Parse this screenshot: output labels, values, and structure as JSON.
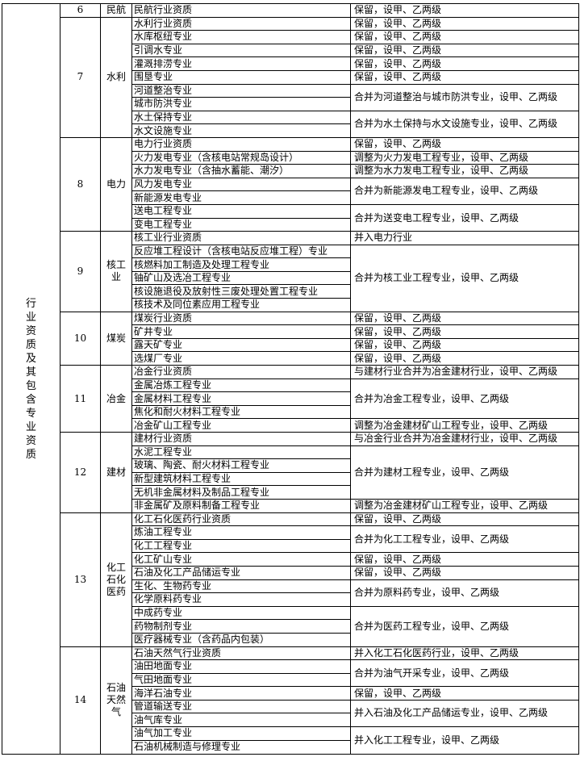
{
  "page": {
    "background": "#ffffff",
    "border_color": "#000000",
    "text_color": "#000000"
  },
  "table": {
    "row_group_header": "行业资质及其包含专业资质",
    "sections": [
      {
        "no": "6",
        "industry": "民航",
        "groups": [
          {
            "specialties": [
              "民航行业资质"
            ],
            "result": "保留，设甲、乙两级"
          }
        ]
      },
      {
        "no": "7",
        "industry": "水利",
        "groups": [
          {
            "specialties": [
              "水利行业资质"
            ],
            "result": "保留，设甲、乙两级"
          },
          {
            "specialties": [
              "水库枢纽专业"
            ],
            "result": "保留，设甲、乙两级"
          },
          {
            "specialties": [
              "引调水专业"
            ],
            "result": "保留，设甲、乙两级"
          },
          {
            "specialties": [
              "灌溉排涝专业"
            ],
            "result": "保留，设甲、乙两级"
          },
          {
            "specialties": [
              "围垦专业"
            ],
            "result": "保留，设甲、乙两级"
          },
          {
            "specialties": [
              "河道整治专业",
              "城市防洪专业"
            ],
            "result": "合并为河道整治与城市防洪专业，设甲、乙两级"
          },
          {
            "specialties": [
              "水土保持专业",
              "水文设施专业"
            ],
            "result": "合并为水土保持与水文设施专业，设甲、乙两级"
          }
        ]
      },
      {
        "no": "8",
        "industry": "电力",
        "groups": [
          {
            "specialties": [
              "电力行业资质"
            ],
            "result": "保留，设甲、乙两级"
          },
          {
            "specialties": [
              "火力发电专业（含核电站常规岛设计）"
            ],
            "result": "调整为火力发电工程专业，设甲、乙两级"
          },
          {
            "specialties": [
              "水力发电专业（含抽水蓄能、潮汐）"
            ],
            "result": "调整为水力发电工程专业，设甲、乙两级"
          },
          {
            "specialties": [
              "风力发电专业",
              "新能源发电专业"
            ],
            "result": "合并为新能源发电工程专业，设甲、乙两级"
          },
          {
            "specialties": [
              "送电工程专业",
              "变电工程专业"
            ],
            "result": "合并为送变电工程专业，设甲、乙两级"
          }
        ]
      },
      {
        "no": "9",
        "industry": "核工业",
        "groups": [
          {
            "specialties": [
              "核工业行业资质"
            ],
            "result": "并入电力行业"
          },
          {
            "specialties": [
              "反应堆工程设计（含核电站反应堆工程）专业",
              "核燃料加工制造及处理工程专业",
              "铀矿山及选冶工程专业",
              "核设施退役及放射性三废处理处置工程专业",
              "核技术及同位素应用工程专业"
            ],
            "result": "合并为核工业工程专业，设甲、乙两级"
          }
        ]
      },
      {
        "no": "10",
        "industry": "煤炭",
        "groups": [
          {
            "specialties": [
              "煤炭行业资质"
            ],
            "result": "保留，设甲、乙两级"
          },
          {
            "specialties": [
              "矿井专业"
            ],
            "result": "保留，设甲、乙两级"
          },
          {
            "specialties": [
              "露天矿专业"
            ],
            "result": "保留，设甲、乙两级"
          },
          {
            "specialties": [
              "选煤厂专业"
            ],
            "result": "保留，设甲、乙两级"
          }
        ]
      },
      {
        "no": "11",
        "industry": "冶金",
        "groups": [
          {
            "specialties": [
              "冶金行业资质"
            ],
            "result": "与建材行业合并为冶金建材行业，设甲、乙两级"
          },
          {
            "specialties": [
              "金属冶炼工程专业",
              "金属材料工程专业",
              "焦化和耐火材料工程专业"
            ],
            "result": "合并为冶金工程专业，设甲、乙两级"
          },
          {
            "specialties": [
              "冶金矿山工程专业"
            ],
            "result": "调整为冶金建材矿山工程专业，设甲、乙两级"
          }
        ]
      },
      {
        "no": "12",
        "industry": "建材",
        "groups": [
          {
            "specialties": [
              "建材行业资质"
            ],
            "result": "与冶金行业合并为冶金建材行业，设甲、乙两级"
          },
          {
            "specialties": [
              "水泥工程专业",
              "玻璃、陶瓷、耐火材料工程专业",
              "新型建筑材料工程专业",
              "无机非金属材料及制品工程专业"
            ],
            "result": "合并为建材工程专业，设甲、乙两级"
          },
          {
            "specialties": [
              "非金属矿及原料制备工程专业"
            ],
            "result": "调整为冶金建材矿山工程专业，设甲、乙两级"
          }
        ]
      },
      {
        "no": "13",
        "industry": "化工石化医药",
        "groups": [
          {
            "specialties": [
              "化工石化医药行业资质"
            ],
            "result": "保留，设甲、乙两级"
          },
          {
            "specialties": [
              "炼油工程专业",
              "化工工程专业"
            ],
            "result": "合并为化工工程专业，设甲、乙两级"
          },
          {
            "specialties": [
              "化工矿山专业"
            ],
            "result": "保留，设甲、乙两级"
          },
          {
            "specialties": [
              "石油及化工产品储运专业"
            ],
            "result": "保留，设甲、乙两级"
          },
          {
            "specialties": [
              "生化、生物药专业",
              "化学原料药专业"
            ],
            "result": "合并为原料药专业，设甲、乙两级"
          },
          {
            "specialties": [
              "中成药专业",
              "药物制剂专业",
              "医疗器械专业（含药品内包装）"
            ],
            "result": "合并为医药工程专业，设甲、乙两级"
          }
        ]
      },
      {
        "no": "14",
        "industry": "石油天然气",
        "groups": [
          {
            "specialties": [
              "石油天然气行业资质"
            ],
            "result": "并入化工石化医药行业，设甲、乙两级"
          },
          {
            "specialties": [
              "油田地面专业",
              "气田地面专业"
            ],
            "result": "合并为油气开采专业，设甲、乙两级"
          },
          {
            "specialties": [
              "海洋石油专业"
            ],
            "result": "保留，设甲、乙两级"
          },
          {
            "specialties": [
              "管道输送专业",
              "油气库专业"
            ],
            "result": "并入石油及化工产品储运专业，设甲、乙两级"
          },
          {
            "specialties": [
              "油气加工专业",
              "石油机械制造与修理专业"
            ],
            "result": "并入化工工程专业，设甲、乙两级"
          }
        ]
      }
    ]
  }
}
